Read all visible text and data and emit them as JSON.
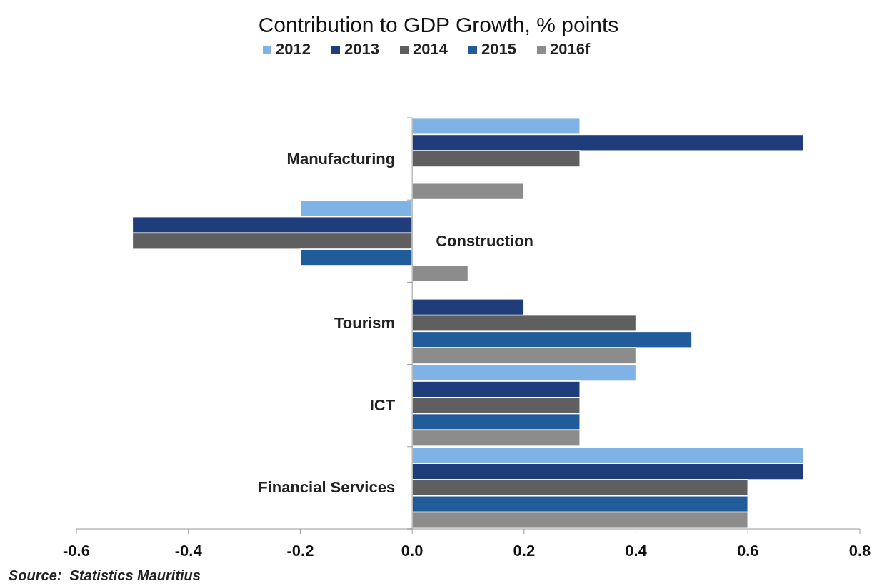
{
  "chart_data": {
    "type": "bar",
    "orientation": "horizontal",
    "title": "Contribution to GDP Growth, % points",
    "categories": [
      "Manufacturing",
      "Construction",
      "Tourism",
      "ICT",
      "Financial Services"
    ],
    "series": [
      {
        "name": "2012",
        "color": "#7fb2e5",
        "values": [
          0.3,
          -0.2,
          null,
          0.4,
          0.7
        ]
      },
      {
        "name": "2013",
        "color": "#1f3d7a",
        "values": [
          0.7,
          -0.5,
          0.2,
          0.3,
          0.7
        ]
      },
      {
        "name": "2014",
        "color": "#5f5f5f",
        "values": [
          0.3,
          -0.5,
          0.4,
          0.3,
          0.6
        ]
      },
      {
        "name": "2015",
        "color": "#1f5c99",
        "values": [
          null,
          -0.2,
          0.5,
          0.3,
          0.6
        ]
      },
      {
        "name": "2016f",
        "color": "#8c8c8c",
        "values": [
          0.2,
          0.1,
          0.4,
          0.3,
          0.6
        ]
      }
    ],
    "xlim": [
      -0.6,
      0.8
    ],
    "xticks": [
      {
        "value": -0.6,
        "label": "-0.6"
      },
      {
        "value": -0.4,
        "label": "-0.4"
      },
      {
        "value": -0.2,
        "label": "-0.2"
      },
      {
        "value": 0,
        "label": "0.0"
      },
      {
        "value": 0.2,
        "label": "0.2"
      },
      {
        "value": 0.4,
        "label": "0.4"
      },
      {
        "value": 0.6,
        "label": "0.6"
      },
      {
        "value": 0.8,
        "label": "0.8"
      }
    ],
    "grid": false,
    "legend": "top",
    "annotations": [
      "Source:  Statistics Mauritius"
    ]
  }
}
